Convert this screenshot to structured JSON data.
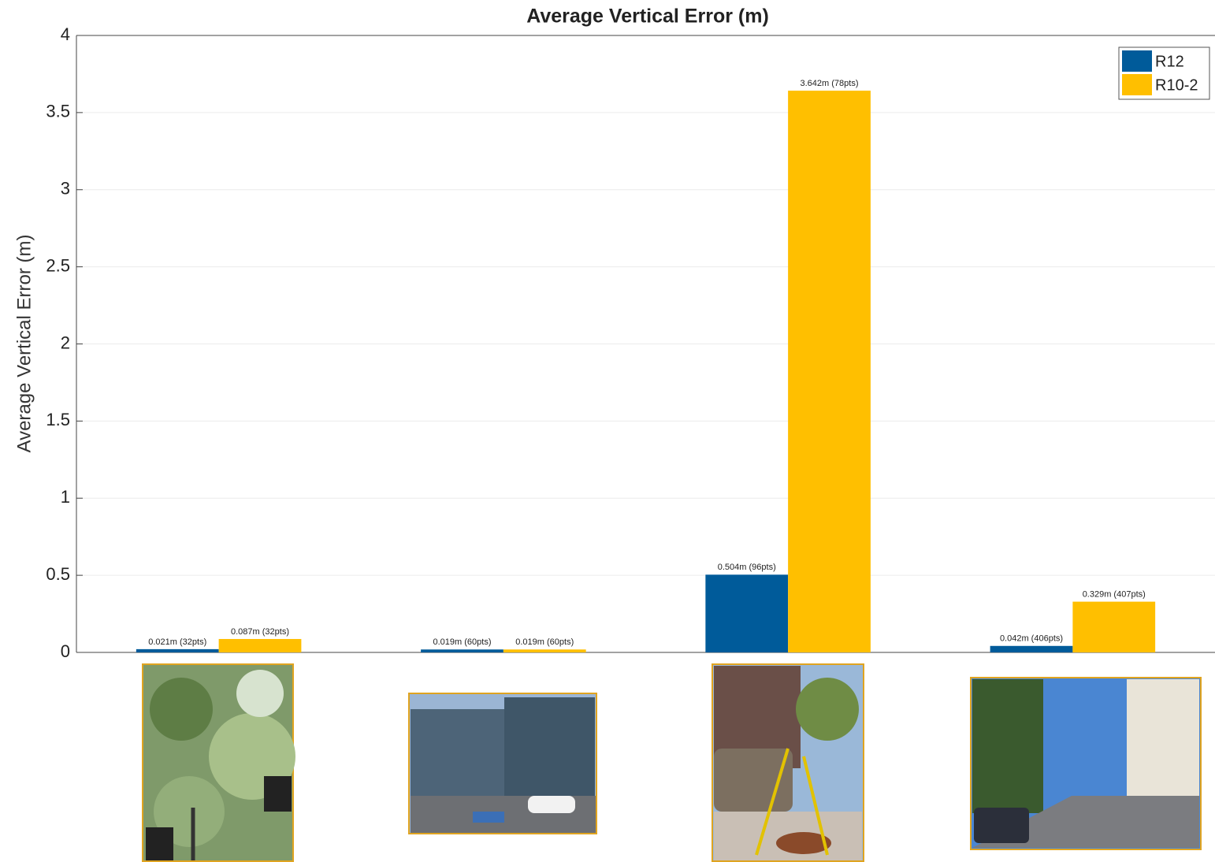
{
  "chart_data": {
    "type": "bar",
    "title": "Average Vertical Error (m)",
    "y_label": "Average Vertical Error (m)",
    "categories": [
      null,
      null,
      null,
      null
    ],
    "series": [
      {
        "name": "R12",
        "color": "#005b9a",
        "values": [
          0.021,
          0.019,
          0.504,
          0.042
        ],
        "value_labels": [
          "0.021m (32pts)",
          "0.019m (60pts)",
          "0.504m (96pts)",
          "0.042m (406pts)"
        ]
      },
      {
        "name": "R10-2",
        "color": "#ffbf00",
        "values": [
          0.087,
          0.019,
          3.642,
          0.329
        ],
        "value_labels": [
          "0.087m (32pts)",
          "0.019m (60pts)",
          "3.642m (78pts)",
          "0.329m (407pts)"
        ]
      }
    ],
    "ylim": [
      0,
      4
    ],
    "yticks": [
      0,
      0.5,
      1,
      1.5,
      2,
      2.5,
      3,
      3.5,
      4
    ],
    "grid": true,
    "legend": "upper right"
  }
}
